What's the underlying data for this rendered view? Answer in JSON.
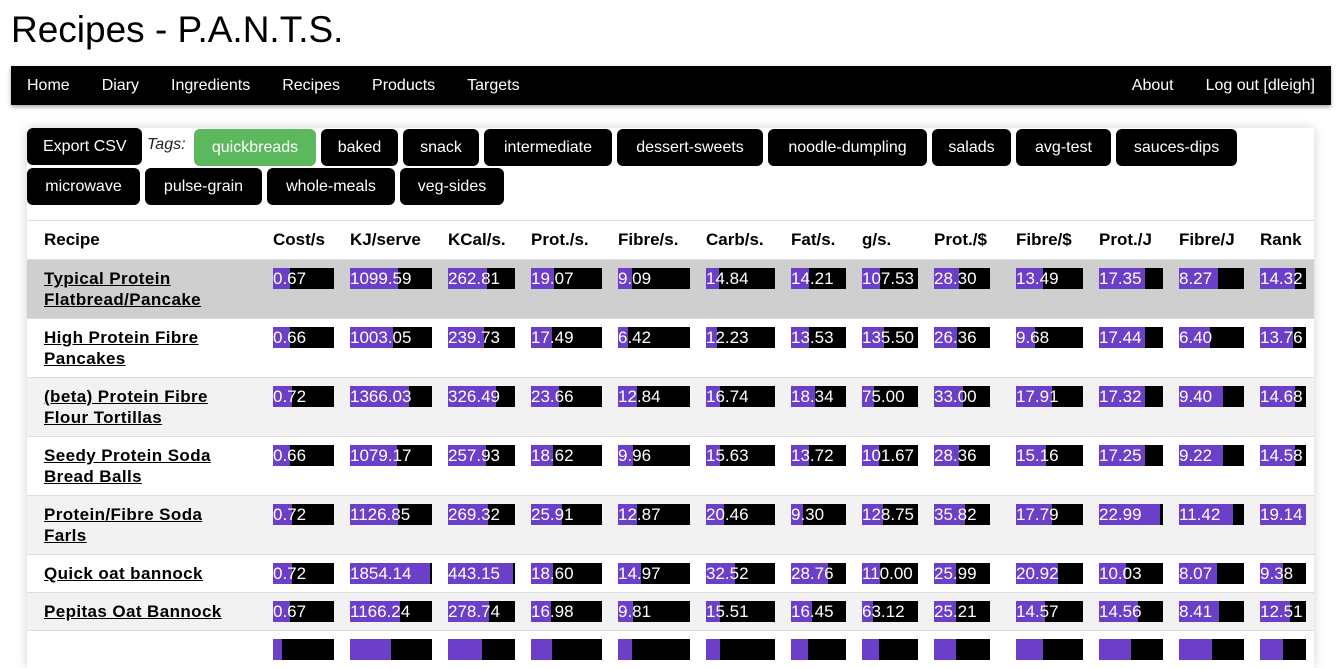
{
  "page": {
    "title": "Recipes - P.A.N.T.S."
  },
  "nav": {
    "left": [
      "Home",
      "Diary",
      "Ingredients",
      "Recipes",
      "Products",
      "Targets"
    ],
    "right": [
      "About",
      "Log out [dleigh]"
    ]
  },
  "toolbar": {
    "export_label": "Export CSV",
    "tags_label": "Tags:",
    "tags": [
      {
        "label": "quickbreads",
        "active": true
      },
      {
        "label": "baked",
        "active": false
      },
      {
        "label": "snack",
        "active": false
      },
      {
        "label": "intermediate",
        "active": false
      },
      {
        "label": "dessert-sweets",
        "active": false
      },
      {
        "label": "noodle-dumpling",
        "active": false
      },
      {
        "label": "salads",
        "active": false
      },
      {
        "label": "avg-test",
        "active": false
      },
      {
        "label": "sauces-dips",
        "active": false
      },
      {
        "label": "microwave",
        "active": false
      },
      {
        "label": "pulse-grain",
        "active": false
      },
      {
        "label": "whole-meals",
        "active": false
      },
      {
        "label": "veg-sides",
        "active": false
      }
    ]
  },
  "table": {
    "columns": [
      "Recipe",
      "Cost/s",
      "KJ/serve",
      "KCal/s.",
      "Prot./s.",
      "Fibre/s.",
      "Carb/s.",
      "Fat/s.",
      "g/s.",
      "Prot./$",
      "Fibre/$",
      "Prot./J",
      "Fibre/J",
      "Rank"
    ],
    "rows": [
      {
        "name": "Typical Protein Flatbread/Pancake",
        "cells": [
          {
            "value": "0.67",
            "fill": 0.28
          },
          {
            "value": "1099.59",
            "fill": 0.58
          },
          {
            "value": "262.81",
            "fill": 0.58
          },
          {
            "value": "19.07",
            "fill": 0.32
          },
          {
            "value": "9.09",
            "fill": 0.19
          },
          {
            "value": "14.84",
            "fill": 0.19
          },
          {
            "value": "14.21",
            "fill": 0.33
          },
          {
            "value": "107.53",
            "fill": 0.32
          },
          {
            "value": "28.30",
            "fill": 0.44
          },
          {
            "value": "13.49",
            "fill": 0.4
          },
          {
            "value": "17.35",
            "fill": 0.72
          },
          {
            "value": "8.27",
            "fill": 0.6
          },
          {
            "value": "14.32",
            "fill": 0.75
          }
        ]
      },
      {
        "name": "High Protein Fibre Pancakes",
        "cells": [
          {
            "value": "0.66",
            "fill": 0.28
          },
          {
            "value": "1003.05",
            "fill": 0.53
          },
          {
            "value": "239.73",
            "fill": 0.53
          },
          {
            "value": "17.49",
            "fill": 0.29
          },
          {
            "value": "6.42",
            "fill": 0.14
          },
          {
            "value": "12.23",
            "fill": 0.16
          },
          {
            "value": "13.53",
            "fill": 0.32
          },
          {
            "value": "135.50",
            "fill": 0.4
          },
          {
            "value": "26.36",
            "fill": 0.41
          },
          {
            "value": "9.68",
            "fill": 0.29
          },
          {
            "value": "17.44",
            "fill": 0.72
          },
          {
            "value": "6.40",
            "fill": 0.47
          },
          {
            "value": "13.76",
            "fill": 0.72
          }
        ]
      },
      {
        "name": "(beta) Protein Fibre Flour Tortillas",
        "cells": [
          {
            "value": "0.72",
            "fill": 0.31
          },
          {
            "value": "1366.03",
            "fill": 0.72
          },
          {
            "value": "326.49",
            "fill": 0.72
          },
          {
            "value": "23.66",
            "fill": 0.4
          },
          {
            "value": "12.84",
            "fill": 0.27
          },
          {
            "value": "16.74",
            "fill": 0.21
          },
          {
            "value": "18.34",
            "fill": 0.43
          },
          {
            "value": "75.00",
            "fill": 0.22
          },
          {
            "value": "33.00",
            "fill": 0.51
          },
          {
            "value": "17.91",
            "fill": 0.53
          },
          {
            "value": "17.32",
            "fill": 0.72
          },
          {
            "value": "9.40",
            "fill": 0.68
          },
          {
            "value": "14.68",
            "fill": 0.77
          }
        ]
      },
      {
        "name": "Seedy Protein Soda Bread Balls",
        "cells": [
          {
            "value": "0.66",
            "fill": 0.28
          },
          {
            "value": "1079.17",
            "fill": 0.57
          },
          {
            "value": "257.93",
            "fill": 0.57
          },
          {
            "value": "18.62",
            "fill": 0.31
          },
          {
            "value": "9.96",
            "fill": 0.21
          },
          {
            "value": "15.63",
            "fill": 0.2
          },
          {
            "value": "13.72",
            "fill": 0.32
          },
          {
            "value": "101.67",
            "fill": 0.3
          },
          {
            "value": "28.36",
            "fill": 0.44
          },
          {
            "value": "15.16",
            "fill": 0.45
          },
          {
            "value": "17.25",
            "fill": 0.72
          },
          {
            "value": "9.22",
            "fill": 0.67
          },
          {
            "value": "14.58",
            "fill": 0.76
          }
        ]
      },
      {
        "name": "Protein/Fibre Soda Farls",
        "cells": [
          {
            "value": "0.72",
            "fill": 0.31
          },
          {
            "value": "1126.85",
            "fill": 0.59
          },
          {
            "value": "269.32",
            "fill": 0.59
          },
          {
            "value": "25.91",
            "fill": 0.43
          },
          {
            "value": "12.87",
            "fill": 0.27
          },
          {
            "value": "20.46",
            "fill": 0.26
          },
          {
            "value": "9.30",
            "fill": 0.22
          },
          {
            "value": "128.75",
            "fill": 0.38
          },
          {
            "value": "35.82",
            "fill": 0.56
          },
          {
            "value": "17.79",
            "fill": 0.53
          },
          {
            "value": "22.99",
            "fill": 0.96
          },
          {
            "value": "11.42",
            "fill": 0.83
          },
          {
            "value": "19.14",
            "fill": 1.0
          }
        ]
      },
      {
        "name": "Quick oat bannock",
        "cells": [
          {
            "value": "0.72",
            "fill": 0.31
          },
          {
            "value": "1854.14",
            "fill": 0.97
          },
          {
            "value": "443.15",
            "fill": 0.97
          },
          {
            "value": "18.60",
            "fill": 0.31
          },
          {
            "value": "14.97",
            "fill": 0.32
          },
          {
            "value": "32.52",
            "fill": 0.42
          },
          {
            "value": "28.76",
            "fill": 0.67
          },
          {
            "value": "110.00",
            "fill": 0.32
          },
          {
            "value": "25.99",
            "fill": 0.4
          },
          {
            "value": "20.92",
            "fill": 0.62
          },
          {
            "value": "10.03",
            "fill": 0.42
          },
          {
            "value": "8.07",
            "fill": 0.59
          },
          {
            "value": "9.38",
            "fill": 0.49
          }
        ]
      },
      {
        "name": "Pepitas Oat Bannock",
        "cells": [
          {
            "value": "0.67",
            "fill": 0.28
          },
          {
            "value": "1166.24",
            "fill": 0.61
          },
          {
            "value": "278.74",
            "fill": 0.61
          },
          {
            "value": "16.98",
            "fill": 0.28
          },
          {
            "value": "9.81",
            "fill": 0.21
          },
          {
            "value": "15.51",
            "fill": 0.2
          },
          {
            "value": "16.45",
            "fill": 0.38
          },
          {
            "value": "63.12",
            "fill": 0.19
          },
          {
            "value": "25.21",
            "fill": 0.39
          },
          {
            "value": "14.57",
            "fill": 0.43
          },
          {
            "value": "14.56",
            "fill": 0.61
          },
          {
            "value": "8.41",
            "fill": 0.61
          },
          {
            "value": "12.51",
            "fill": 0.65
          }
        ]
      },
      {
        "name": "",
        "cells": [
          {
            "value": "",
            "fill": 0.15
          },
          {
            "value": "",
            "fill": 0.5
          },
          {
            "value": "",
            "fill": 0.5
          },
          {
            "value": "",
            "fill": 0.3
          },
          {
            "value": "",
            "fill": 0.2
          },
          {
            "value": "",
            "fill": 0.2
          },
          {
            "value": "",
            "fill": 0.3
          },
          {
            "value": "",
            "fill": 0.3
          },
          {
            "value": "",
            "fill": 0.4
          },
          {
            "value": "",
            "fill": 0.4
          },
          {
            "value": "",
            "fill": 0.5
          },
          {
            "value": "",
            "fill": 0.5
          },
          {
            "value": "",
            "fill": 0.5
          }
        ]
      }
    ]
  },
  "colors": {
    "bar_fill": "#6b3fc7",
    "bar_bg": "#000000",
    "active_tag": "#5cb85c",
    "highlight_row": "#cfcfcf"
  }
}
